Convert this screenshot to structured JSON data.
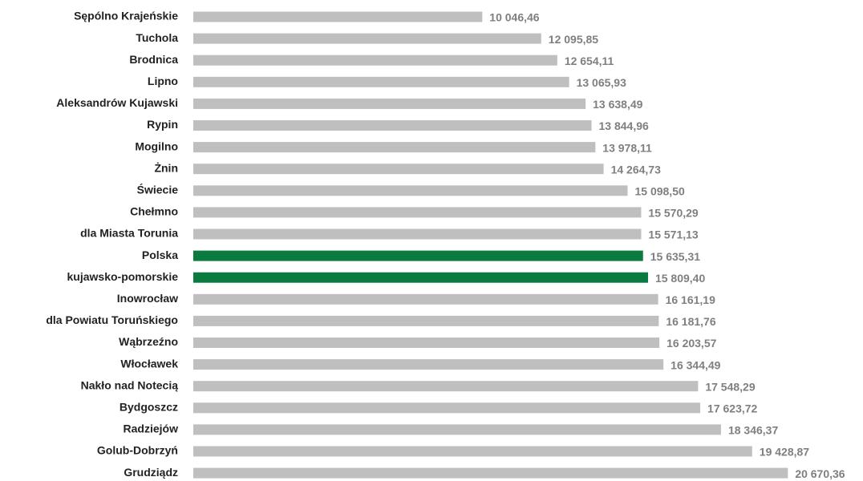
{
  "chart_data": {
    "type": "bar",
    "orientation": "horizontal",
    "categories": [
      "Sępólno Krajeńskie",
      "Tuchola",
      "Brodnica",
      "Lipno",
      "Aleksandrów Kujawski",
      "Rypin",
      "Mogilno",
      "Żnin",
      "Świecie",
      "Chełmno",
      "dla Miasta Torunia",
      "Polska",
      "kujawsko-pomorskie",
      "Inowrocław",
      "dla Powiatu Toruńskiego",
      "Wąbrzeźno",
      "Włocławek",
      "Nakło nad Notecią",
      "Bydgoszcz",
      "Radziejów",
      "Golub-Dobrzyń",
      "Grudziądz"
    ],
    "values": [
      10046.46,
      12095.85,
      12654.11,
      13065.93,
      13638.49,
      13844.96,
      13978.11,
      14264.73,
      15098.5,
      15570.29,
      15571.13,
      15635.31,
      15809.4,
      16161.19,
      16181.76,
      16203.57,
      16344.49,
      17548.29,
      17623.72,
      18346.37,
      19428.87,
      20670.36
    ],
    "value_labels": [
      "10 046,46",
      "12 095,85",
      "12 654,11",
      "13 065,93",
      "13 638,49",
      "13 844,96",
      "13 978,11",
      "14 264,73",
      "15 098,50",
      "15 570,29",
      "15 571,13",
      "15 635,31",
      "15 809,40",
      "16 161,19",
      "16 181,76",
      "16 203,57",
      "16 344,49",
      "17 548,29",
      "17 623,72",
      "18 346,37",
      "19 428,87",
      "20 670,36"
    ],
    "colors": [
      "#bfbfbf",
      "#bfbfbf",
      "#bfbfbf",
      "#bfbfbf",
      "#bfbfbf",
      "#bfbfbf",
      "#bfbfbf",
      "#bfbfbf",
      "#bfbfbf",
      "#bfbfbf",
      "#bfbfbf",
      "#0b7a3e",
      "#0b7a3e",
      "#bfbfbf",
      "#bfbfbf",
      "#bfbfbf",
      "#bfbfbf",
      "#bfbfbf",
      "#bfbfbf",
      "#bfbfbf",
      "#bfbfbf",
      "#bfbfbf"
    ],
    "xlim": [
      0,
      22000
    ]
  }
}
